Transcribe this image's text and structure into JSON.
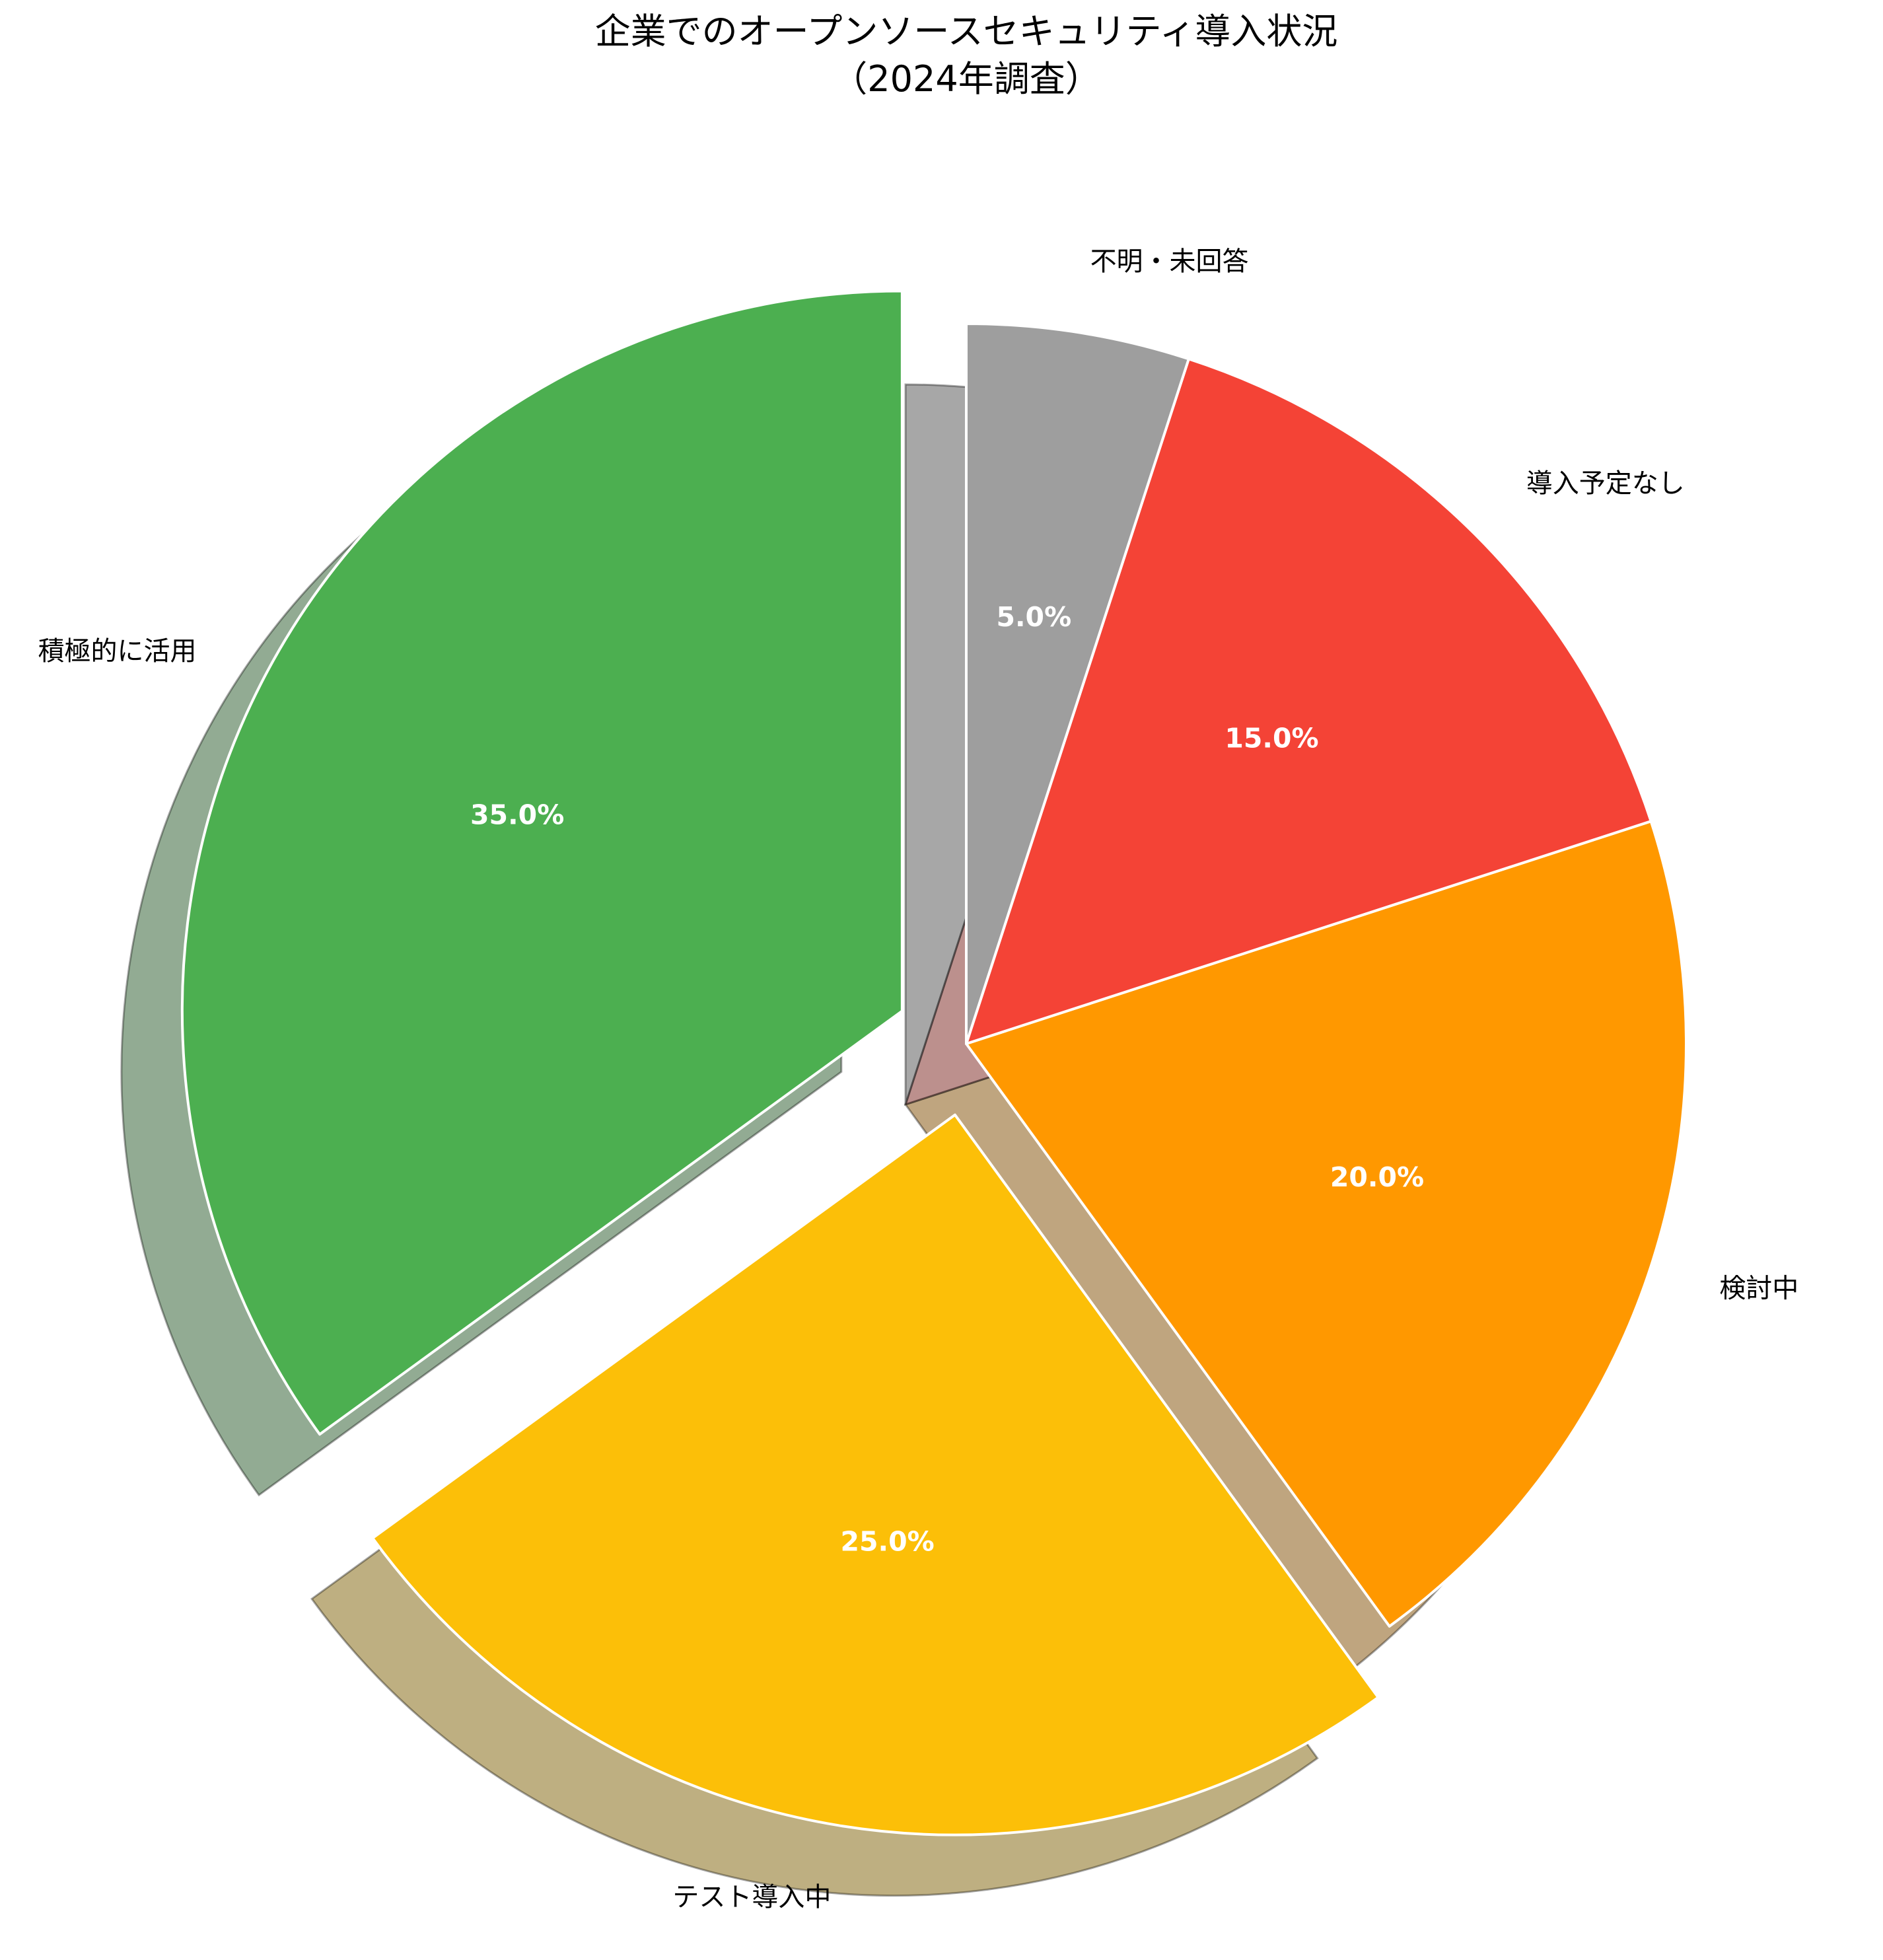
{
  "chart_data": {
    "type": "pie",
    "title": "企業でのオープンソースセキュリティ導入状況",
    "subtitle": "（2024年調査）",
    "categories": [
      "積極的に活用",
      "テスト導入中",
      "検討中",
      "導入予定なし",
      "不明・未回答"
    ],
    "values": [
      35.0,
      25.0,
      20.0,
      15.0,
      5.0
    ],
    "value_labels": [
      "35.0%",
      "25.0%",
      "20.0%",
      "15.0%",
      "5.0%"
    ],
    "colors": [
      "#4caf50",
      "#fcbf08",
      "#ff9800",
      "#f44336",
      "#9e9e9e"
    ],
    "exploded": [
      true,
      true,
      false,
      false,
      false
    ],
    "shadow": true,
    "start_angle_deg": 90,
    "direction": "counterclockwise",
    "legend": "none"
  }
}
